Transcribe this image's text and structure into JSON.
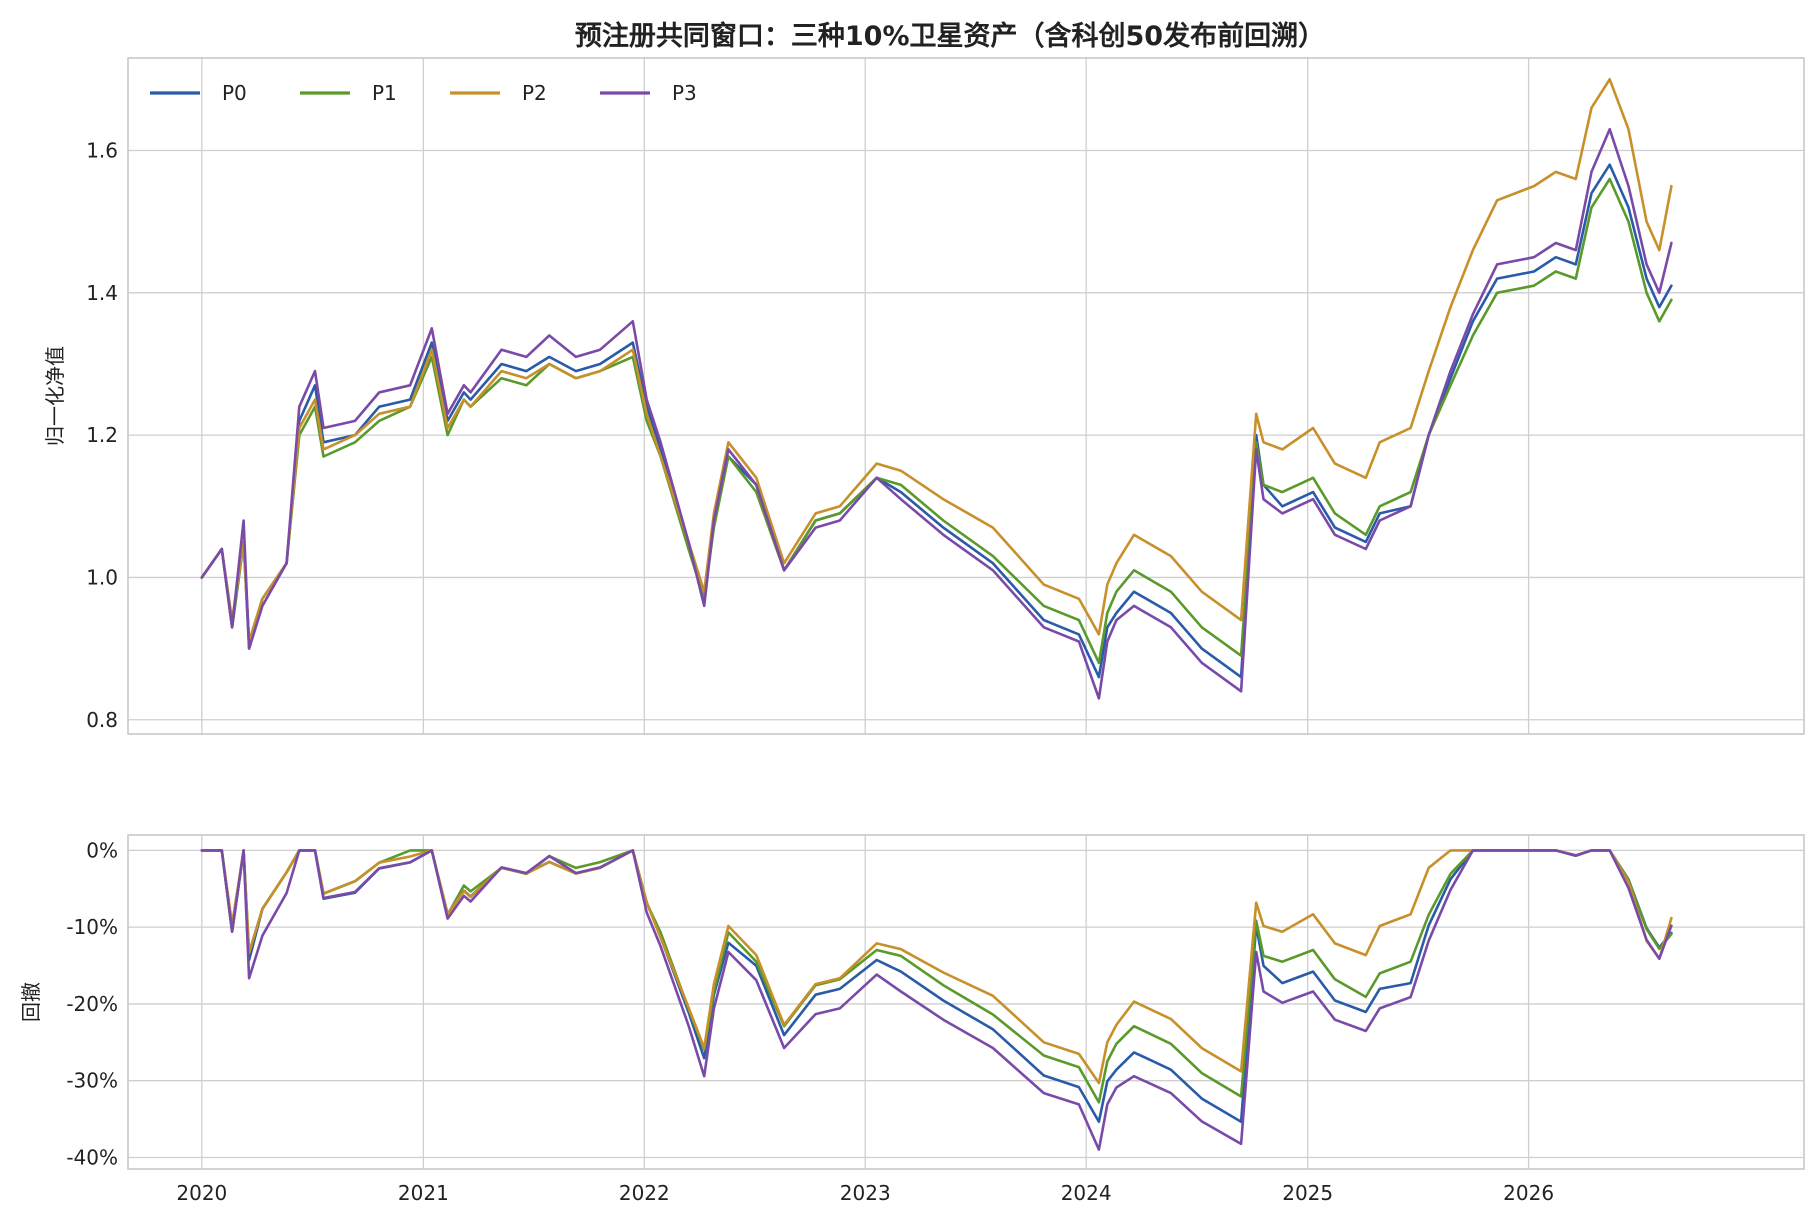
{
  "chart_data": {
    "type": "line",
    "title": "预注册共同窗口：三种10%卫星资产（含科创50发布前回溯）",
    "legend_position": "top-left",
    "grid": true,
    "x_ticks": [
      "2020",
      "2021",
      "2022",
      "2023",
      "2024",
      "2025",
      "2026"
    ],
    "x_range": [
      "2019-09-01",
      "2027-04-01"
    ],
    "top_panel": {
      "ylabel": "归一化净值",
      "ylim": [
        0.78,
        1.73
      ],
      "yticks": [
        "0.8",
        "1.0",
        "1.2",
        "1.4",
        "1.6"
      ],
      "ytick_values": [
        0.8,
        1.0,
        1.2,
        1.4,
        1.6
      ]
    },
    "bottom_panel": {
      "ylabel": "回撤",
      "ylim": [
        -41.5,
        2
      ],
      "yticks": [
        "0%",
        "-10%",
        "-20%",
        "-30%",
        "-40%"
      ],
      "ytick_values": [
        0,
        -10,
        -20,
        -30,
        -40
      ]
    },
    "x": [
      "2020-01-01",
      "2020-02-03",
      "2020-02-20",
      "2020-03-10",
      "2020-03-19",
      "2020-04-10",
      "2020-05-20",
      "2020-06-10",
      "2020-07-06",
      "2020-07-20",
      "2020-09-10",
      "2020-10-20",
      "2020-12-10",
      "2021-01-15",
      "2021-02-10",
      "2021-03-09",
      "2021-03-20",
      "2021-05-10",
      "2021-06-20",
      "2021-07-28",
      "2021-09-10",
      "2021-10-20",
      "2021-12-13",
      "2022-01-05",
      "2022-01-28",
      "2022-03-15",
      "2022-04-10",
      "2022-04-26",
      "2022-05-20",
      "2022-07-05",
      "2022-08-20",
      "2022-10-11",
      "2022-11-20",
      "2023-01-20",
      "2023-03-01",
      "2023-05-10",
      "2023-07-31",
      "2023-10-23",
      "2023-12-20",
      "2024-01-22",
      "2024-02-05",
      "2024-02-20",
      "2024-03-20",
      "2024-05-20",
      "2024-07-10",
      "2024-09-13",
      "2024-10-08",
      "2024-10-20",
      "2024-11-20",
      "2025-01-10",
      "2025-02-15",
      "2025-04-07",
      "2025-04-30",
      "2025-06-20",
      "2025-07-20",
      "2025-08-25",
      "2025-10-01",
      "2025-11-10",
      "2026-01-10",
      "2026-02-15",
      "2026-03-20",
      "2026-04-15",
      "2026-05-15",
      "2026-06-15",
      "2026-07-15",
      "2026-08-05",
      "2026-08-25"
    ],
    "series": [
      {
        "name": "P0",
        "color": "#2a5ba8",
        "values": [
          1.0,
          1.04,
          0.93,
          1.05,
          0.9,
          0.97,
          1.02,
          1.22,
          1.27,
          1.19,
          1.2,
          1.24,
          1.25,
          1.33,
          1.22,
          1.26,
          1.25,
          1.3,
          1.29,
          1.31,
          1.29,
          1.3,
          1.33,
          1.24,
          1.18,
          1.05,
          0.97,
          1.08,
          1.17,
          1.13,
          1.01,
          1.08,
          1.09,
          1.14,
          1.12,
          1.07,
          1.02,
          0.94,
          0.92,
          0.86,
          0.93,
          0.95,
          0.98,
          0.95,
          0.9,
          0.86,
          1.2,
          1.13,
          1.1,
          1.12,
          1.07,
          1.05,
          1.09,
          1.1,
          1.2,
          1.28,
          1.36,
          1.42,
          1.43,
          1.45,
          1.44,
          1.54,
          1.58,
          1.52,
          1.42,
          1.38,
          1.41
        ]
      },
      {
        "name": "P1",
        "color": "#5a9a2a",
        "values": [
          1.0,
          1.04,
          0.93,
          1.05,
          0.91,
          0.97,
          1.02,
          1.2,
          1.24,
          1.17,
          1.19,
          1.22,
          1.24,
          1.31,
          1.2,
          1.25,
          1.24,
          1.28,
          1.27,
          1.3,
          1.28,
          1.29,
          1.31,
          1.22,
          1.17,
          1.04,
          0.97,
          1.07,
          1.17,
          1.12,
          1.01,
          1.08,
          1.09,
          1.14,
          1.13,
          1.08,
          1.03,
          0.96,
          0.94,
          0.88,
          0.95,
          0.98,
          1.01,
          0.98,
          0.93,
          0.89,
          1.19,
          1.13,
          1.12,
          1.14,
          1.09,
          1.06,
          1.1,
          1.12,
          1.2,
          1.27,
          1.34,
          1.4,
          1.41,
          1.43,
          1.42,
          1.52,
          1.56,
          1.5,
          1.4,
          1.36,
          1.39
        ]
      },
      {
        "name": "P2",
        "color": "#c7902a",
        "values": [
          1.0,
          1.04,
          0.94,
          1.05,
          0.91,
          0.97,
          1.02,
          1.21,
          1.25,
          1.18,
          1.2,
          1.23,
          1.24,
          1.32,
          1.21,
          1.25,
          1.24,
          1.29,
          1.28,
          1.3,
          1.28,
          1.29,
          1.32,
          1.23,
          1.17,
          1.05,
          0.98,
          1.09,
          1.19,
          1.14,
          1.02,
          1.09,
          1.1,
          1.16,
          1.15,
          1.11,
          1.07,
          0.99,
          0.97,
          0.92,
          0.99,
          1.02,
          1.06,
          1.03,
          0.98,
          0.94,
          1.23,
          1.19,
          1.18,
          1.21,
          1.16,
          1.14,
          1.19,
          1.21,
          1.29,
          1.38,
          1.46,
          1.53,
          1.55,
          1.57,
          1.56,
          1.66,
          1.7,
          1.63,
          1.5,
          1.46,
          1.55
        ]
      },
      {
        "name": "P3",
        "color": "#7a4aa8",
        "values": [
          1.0,
          1.04,
          0.93,
          1.08,
          0.9,
          0.96,
          1.02,
          1.24,
          1.29,
          1.21,
          1.22,
          1.26,
          1.27,
          1.35,
          1.23,
          1.27,
          1.26,
          1.32,
          1.31,
          1.34,
          1.31,
          1.32,
          1.36,
          1.25,
          1.19,
          1.05,
          0.96,
          1.08,
          1.18,
          1.13,
          1.01,
          1.07,
          1.08,
          1.14,
          1.11,
          1.06,
          1.01,
          0.93,
          0.91,
          0.83,
          0.91,
          0.94,
          0.96,
          0.93,
          0.88,
          0.84,
          1.18,
          1.11,
          1.09,
          1.11,
          1.06,
          1.04,
          1.08,
          1.1,
          1.2,
          1.29,
          1.37,
          1.44,
          1.45,
          1.47,
          1.46,
          1.57,
          1.63,
          1.55,
          1.44,
          1.4,
          1.47
        ]
      }
    ]
  }
}
